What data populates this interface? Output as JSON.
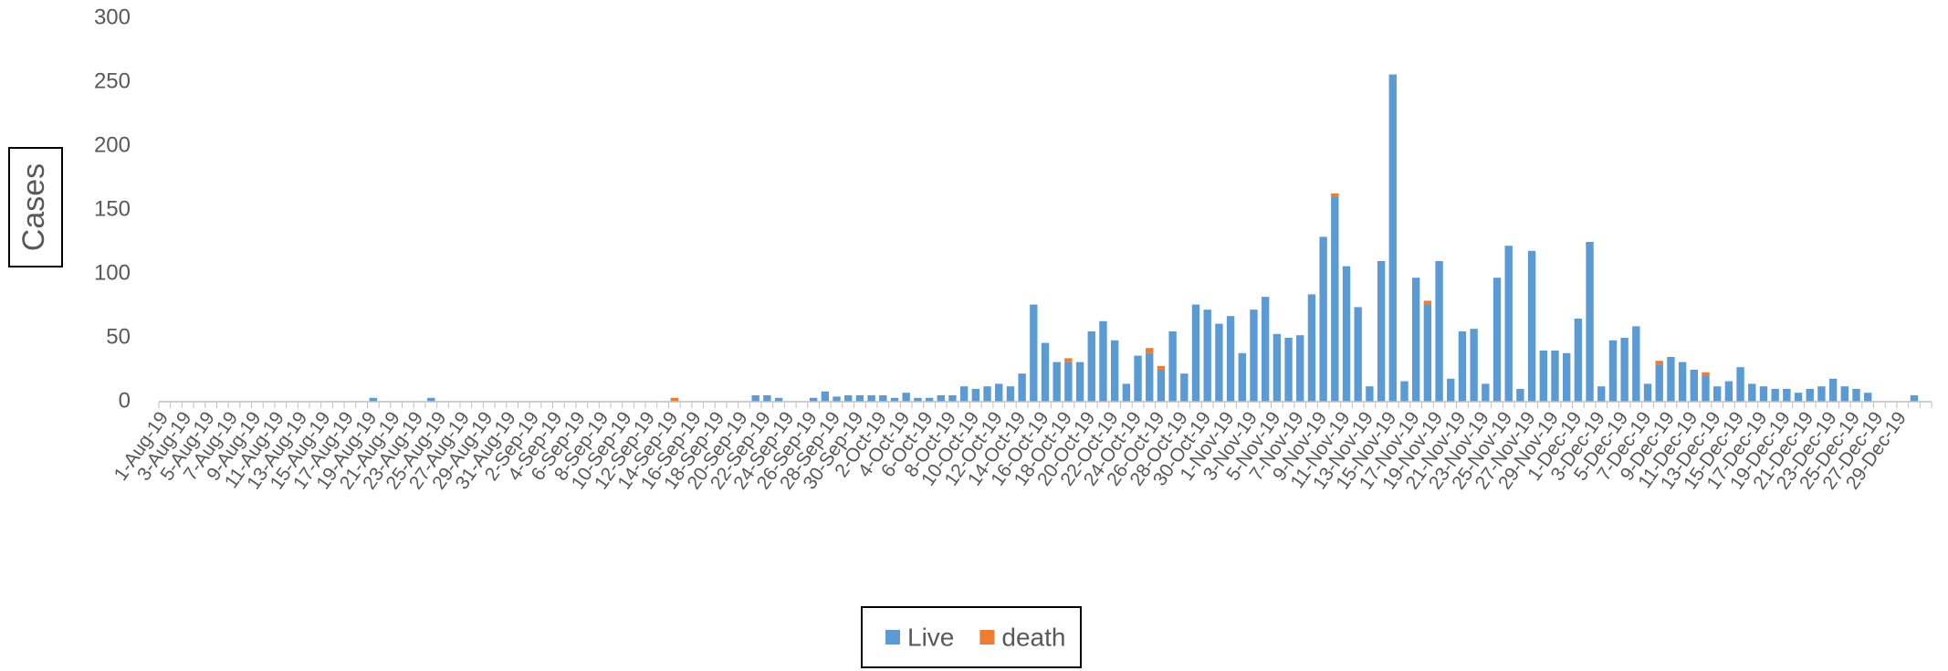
{
  "chart_data": {
    "type": "stacked_bar",
    "y_label": "Cases",
    "stacked": true,
    "legend": "bottom",
    "grid": false,
    "categories": [
      "1-Aug-19",
      null,
      "3-Aug-19",
      null,
      "5-Aug-19",
      null,
      "7-Aug-19",
      null,
      "9-Aug-19",
      null,
      "11-Aug-19",
      null,
      "13-Aug-19",
      null,
      "15-Aug-19",
      null,
      "17-Aug-19",
      null,
      "19-Aug-19",
      null,
      "21-Aug-19",
      null,
      "23-Aug-19",
      null,
      "25-Aug-19",
      null,
      "27-Aug-19",
      null,
      "29-Aug-19",
      null,
      "31-Aug-19",
      null,
      "2-Sep-19",
      null,
      "4-Sep-19",
      null,
      "6-Sep-19",
      null,
      "8-Sep-19",
      null,
      "10-Sep-19",
      null,
      "12-Sep-19",
      null,
      "14-Sep-19",
      null,
      "16-Sep-19",
      null,
      "18-Sep-19",
      null,
      "20-Sep-19",
      null,
      "22-Sep-19",
      null,
      "24-Sep-19",
      null,
      "26-Sep-19",
      null,
      "28-Sep-19",
      null,
      "30-Sep-19",
      null,
      "2-Oct-19",
      null,
      "4-Oct-19",
      null,
      "6-Oct-19",
      null,
      "8-Oct-19",
      null,
      "10-Oct-19",
      null,
      "12-Oct-19",
      null,
      "14-Oct-19",
      null,
      "16-Oct-19",
      null,
      "18-Oct-19",
      null,
      "20-Oct-19",
      null,
      "22-Oct-19",
      null,
      "24-Oct-19",
      null,
      "26-Oct-19",
      null,
      "28-Oct-19",
      null,
      "30-Oct-19",
      null,
      "1-Nov-19",
      null,
      "3-Nov-19",
      null,
      "5-Nov-19",
      null,
      "7-Nov-19",
      null,
      "9-Nov-19",
      null,
      "11-Nov-19",
      null,
      "13-Nov-19",
      null,
      "15-Nov-19",
      null,
      "17-Nov-19",
      null,
      "19-Nov-19",
      null,
      "21-Nov-19",
      null,
      "23-Nov-19",
      null,
      "25-Nov-19",
      null,
      "27-Nov-19",
      null,
      "29-Nov-19",
      null,
      "1-Dec-19",
      null,
      "3-Dec-19",
      null,
      "5-Dec-19",
      null,
      "7-Dec-19",
      null,
      "9-Dec-19",
      null,
      "11-Dec-19",
      null,
      "13-Dec-19",
      null,
      "15-Dec-19",
      null,
      "17-Dec-19",
      null,
      "19-Dec-19",
      null,
      "21-Dec-19",
      null,
      "23-Dec-19",
      null,
      "25-Dec-19",
      null,
      "27-Dec-19",
      null,
      "29-Dec-19",
      null,
      null
    ],
    "series": [
      {
        "name": "Live",
        "color": "#5b9bd5",
        "values": [
          0,
          0,
          0,
          0,
          0,
          0,
          0,
          0,
          0,
          0,
          0,
          0,
          0,
          0,
          0,
          0,
          0,
          0,
          3,
          0,
          0,
          0,
          0,
          3,
          0,
          0,
          0,
          0,
          0,
          0,
          0,
          0,
          0,
          0,
          0,
          0,
          0,
          0,
          0,
          0,
          0,
          0,
          0,
          0,
          0,
          0,
          0,
          0,
          0,
          0,
          0,
          5,
          5,
          3,
          0,
          0,
          3,
          8,
          4,
          5,
          5,
          5,
          5,
          3,
          7,
          3,
          3,
          5,
          5,
          12,
          10,
          12,
          14,
          12,
          22,
          76,
          46,
          31,
          31,
          31,
          55,
          63,
          48,
          14,
          36,
          38,
          25,
          55,
          22,
          76,
          72,
          61,
          67,
          38,
          72,
          82,
          53,
          50,
          52,
          84,
          129,
          160,
          106,
          74,
          12,
          110,
          256,
          16,
          97,
          76,
          110,
          18,
          55,
          57,
          14,
          97,
          122,
          10,
          118,
          40,
          40,
          38,
          65,
          125,
          12,
          48,
          50,
          59,
          14,
          29,
          35,
          31,
          25,
          20,
          12,
          16,
          27,
          14,
          12,
          10,
          10,
          7,
          10,
          12,
          18,
          12,
          10,
          7,
          0,
          0,
          0,
          5,
          0
        ]
      },
      {
        "name": "death",
        "color": "#ed7d31",
        "values": [
          0,
          0,
          0,
          0,
          0,
          0,
          0,
          0,
          0,
          0,
          0,
          0,
          0,
          0,
          0,
          0,
          0,
          0,
          0,
          0,
          0,
          0,
          0,
          0,
          0,
          0,
          0,
          0,
          0,
          0,
          0,
          0,
          0,
          0,
          0,
          0,
          0,
          0,
          0,
          0,
          0,
          0,
          0,
          0,
          3,
          0,
          0,
          0,
          0,
          0,
          0,
          0,
          0,
          0,
          0,
          0,
          0,
          0,
          0,
          0,
          0,
          0,
          0,
          0,
          0,
          0,
          0,
          0,
          0,
          0,
          0,
          0,
          0,
          0,
          0,
          0,
          0,
          0,
          3,
          0,
          0,
          0,
          0,
          0,
          0,
          4,
          3,
          0,
          0,
          0,
          0,
          0,
          0,
          0,
          0,
          0,
          0,
          0,
          0,
          0,
          0,
          3,
          0,
          0,
          0,
          0,
          0,
          0,
          0,
          3,
          0,
          0,
          0,
          0,
          0,
          0,
          0,
          0,
          0,
          0,
          0,
          0,
          0,
          0,
          0,
          0,
          0,
          0,
          0,
          3,
          0,
          0,
          0,
          3,
          0,
          0,
          0,
          0,
          0,
          0,
          0,
          0,
          0,
          0,
          0,
          0,
          0,
          0,
          0,
          0,
          0,
          0,
          0
        ]
      }
    ],
    "ylim": [
      0,
      300
    ],
    "yticks": [
      0,
      50,
      100,
      150,
      200,
      250,
      300
    ]
  }
}
